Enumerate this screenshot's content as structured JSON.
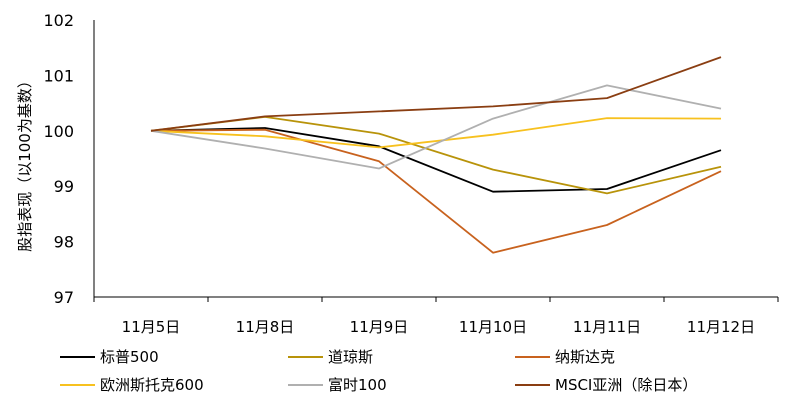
{
  "chart_data": {
    "type": "line",
    "categories": [
      "11月5日",
      "11月8日",
      "11月9日",
      "11月10日",
      "11月11日",
      "11月12日"
    ],
    "ylabel": "股指表现（以100为基数）",
    "xlabel": "",
    "ylim": [
      97,
      102
    ],
    "yticks": [
      97,
      98,
      99,
      100,
      101,
      102
    ],
    "grid": false,
    "legend_position": "bottom",
    "series": [
      {
        "name": "标普500",
        "color": "#000000",
        "values": [
          100.0,
          100.05,
          99.72,
          98.9,
          98.95,
          99.65
        ]
      },
      {
        "name": "道琼斯",
        "color": "#b8930a",
        "values": [
          100.0,
          100.25,
          99.95,
          99.3,
          98.87,
          99.35
        ]
      },
      {
        "name": "纳斯达克",
        "color": "#c8621e",
        "values": [
          100.0,
          100.02,
          99.45,
          97.8,
          98.3,
          99.27
        ]
      },
      {
        "name": "欧洲斯托克600",
        "color": "#f7c11f",
        "values": [
          100.0,
          99.9,
          99.7,
          99.93,
          100.23,
          100.22
        ]
      },
      {
        "name": "富时100",
        "color": "#b0b0b0",
        "values": [
          100.0,
          99.68,
          99.32,
          100.22,
          100.82,
          100.4
        ]
      },
      {
        "name": "MSCI亚洲（除日本）",
        "color": "#8a3e12",
        "values": [
          100.0,
          100.26,
          100.35,
          100.44,
          100.59,
          101.33
        ]
      }
    ]
  }
}
